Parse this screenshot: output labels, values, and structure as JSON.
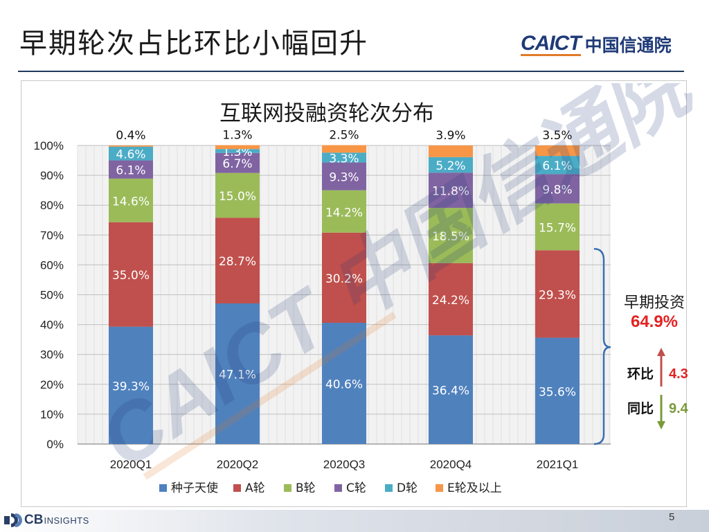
{
  "slide": {
    "title": "早期轮次占比环比小幅回升",
    "logo_latin": "CAICT",
    "logo_cn": "中国信通院",
    "page_number": "5",
    "footer_logo_main": "CB",
    "footer_logo_sub": "INSIGHTS",
    "watermark_text": "CAICT 中国信通院"
  },
  "chart_data": {
    "type": "bar",
    "stacked": true,
    "title": "互联网投融资轮次分布",
    "categories": [
      "2020Q1",
      "2020Q2",
      "2020Q3",
      "2020Q4",
      "2021Q1"
    ],
    "ylim": [
      0,
      100
    ],
    "yticks": [
      "0%",
      "10%",
      "20%",
      "30%",
      "40%",
      "50%",
      "60%",
      "70%",
      "80%",
      "90%",
      "100%"
    ],
    "grid": true,
    "legend_position": "bottom",
    "series": [
      {
        "name": "种子天使",
        "color": "#4f81bd",
        "values": [
          39.3,
          47.1,
          40.6,
          36.4,
          35.6
        ],
        "labels": [
          "39.3%",
          "47.1%",
          "40.6%",
          "36.4%",
          "35.6%"
        ]
      },
      {
        "name": "A轮",
        "color": "#c0504d",
        "values": [
          35.0,
          28.7,
          30.2,
          24.2,
          29.3
        ],
        "labels": [
          "35.0%",
          "28.7%",
          "30.2%",
          "24.2%",
          "29.3%"
        ]
      },
      {
        "name": "B轮",
        "color": "#9bbb59",
        "values": [
          14.6,
          15.0,
          14.2,
          18.5,
          15.7
        ],
        "labels": [
          "14.6%",
          "15.0%",
          "14.2%",
          "18.5%",
          "15.7%"
        ]
      },
      {
        "name": "C轮",
        "color": "#8064a2",
        "values": [
          6.1,
          6.7,
          9.3,
          11.8,
          9.8
        ],
        "labels": [
          "6.1%",
          "6.7%",
          "9.3%",
          "11.8%",
          "9.8%"
        ]
      },
      {
        "name": "D轮",
        "color": "#4bacc6",
        "values": [
          4.6,
          1.3,
          3.3,
          5.2,
          6.1
        ],
        "labels": [
          "4.6%",
          "1.3%",
          "3.3%",
          "5.2%",
          "6.1%"
        ]
      },
      {
        "name": "E轮及以上",
        "color": "#f79646",
        "values": [
          0.4,
          1.3,
          2.5,
          3.9,
          3.5
        ],
        "labels": [
          "0.4%",
          "1.3%",
          "2.5%",
          "3.9%",
          "3.5%"
        ]
      }
    ],
    "annotations": {
      "early_label": "早期投资",
      "early_value": "64.9%",
      "qoq_label": "环比",
      "qoq_value": "4.3",
      "yoy_label": "同比",
      "yoy_value": "9.4",
      "early_color": "#e32222",
      "qoq_color": "#c0504d",
      "yoy_color": "#7a9a3a",
      "bracket_color": "#3a6db3"
    }
  }
}
